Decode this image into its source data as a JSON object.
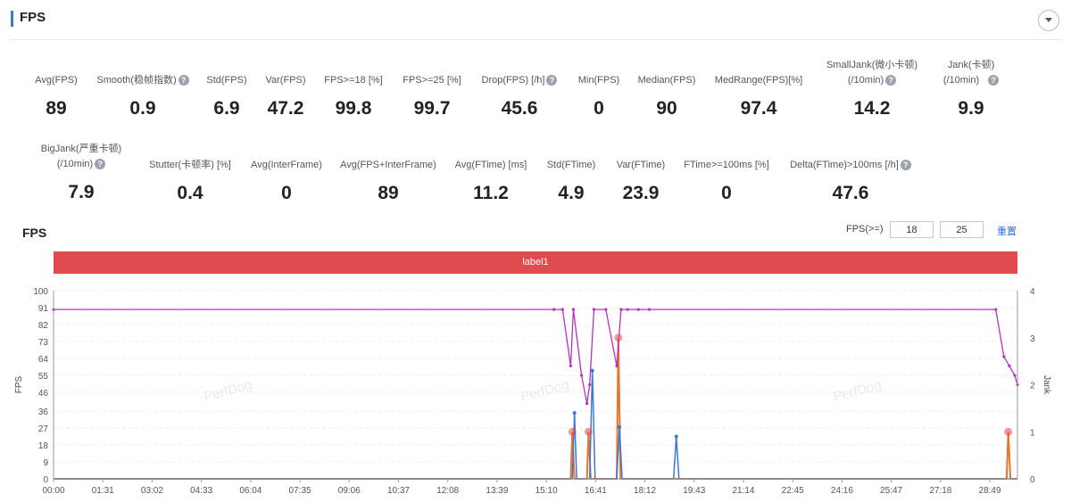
{
  "header": {
    "title": "FPS"
  },
  "metrics_row1": [
    {
      "label": "Avg(FPS)",
      "value": "89",
      "help": false
    },
    {
      "label": "Smooth(稳帧指数)",
      "value": "0.9",
      "help": true
    },
    {
      "label": "Std(FPS)",
      "value": "6.9",
      "help": false
    },
    {
      "label": "Var(FPS)",
      "value": "47.2",
      "help": false
    },
    {
      "label": "FPS>=18 [%]",
      "value": "99.8",
      "help": false
    },
    {
      "label": "FPS>=25 [%]",
      "value": "99.7",
      "help": false
    },
    {
      "label": "Drop(FPS) [/h]",
      "value": "45.6",
      "help": true
    },
    {
      "label": "Min(FPS)",
      "value": "0",
      "help": false
    },
    {
      "label": "Median(FPS)",
      "value": "90",
      "help": false
    },
    {
      "label": "MedRange(FPS)[%]",
      "value": "97.4",
      "help": false
    },
    {
      "label_line1": "SmallJank(微小卡顿)",
      "label_line2": "(/10min)",
      "value": "14.2",
      "help": true
    },
    {
      "label_line1": "Jank(卡顿)",
      "label_line2": "(/10min)",
      "value": "9.9",
      "help": true
    }
  ],
  "metrics_row2": [
    {
      "label_line1": "BigJank(严重卡顿)",
      "label_line2": "(/10min)",
      "value": "7.9",
      "help": true
    },
    {
      "label": "Stutter(卡顿率) [%]",
      "value": "0.4",
      "help": false
    },
    {
      "label": "Avg(InterFrame)",
      "value": "0",
      "help": false
    },
    {
      "label": "Avg(FPS+InterFrame)",
      "value": "89",
      "help": false
    },
    {
      "label": "Avg(FTime) [ms]",
      "value": "11.2",
      "help": false
    },
    {
      "label": "Std(FTime)",
      "value": "4.9",
      "help": false
    },
    {
      "label": "Var(FTime)",
      "value": "23.9",
      "help": false
    },
    {
      "label": "FTime>=100ms [%]",
      "value": "0",
      "help": false
    },
    {
      "label": "Delta(FTime)>100ms [/h]",
      "value": "47.6",
      "help": true
    }
  ],
  "chart_controls": {
    "title": "FPS",
    "threshold_label": "FPS(>=)",
    "threshold1": "18",
    "threshold2": "25",
    "reset_label": "重置",
    "band_label": "label1"
  },
  "watermark": "PerfDog",
  "colors": {
    "fps": "#b233c2",
    "jank": "#3a78d8",
    "bigjank": "#e8742a",
    "marker": "#e04848",
    "band": "#df4b4e",
    "accent": "#3a7bd5"
  },
  "chart_data": {
    "type": "line",
    "ylabel": "FPS",
    "y2label": "Jank",
    "ylim": [
      0,
      100
    ],
    "y2lim": [
      0,
      4
    ],
    "y_ticks": [
      0,
      9,
      18,
      27,
      36,
      46,
      55,
      64,
      73,
      82,
      91,
      100
    ],
    "y2_ticks": [
      0,
      1,
      2,
      3,
      4
    ],
    "x_ticks": [
      "00:00",
      "01:31",
      "03:02",
      "04:33",
      "06:04",
      "07:35",
      "09:06",
      "10:37",
      "12:08",
      "13:39",
      "15:10",
      "16:41",
      "18:12",
      "19:43",
      "21:14",
      "22:45",
      "24:16",
      "25:47",
      "27:18",
      "28:49"
    ],
    "x_range_seconds": [
      0,
      1780
    ],
    "series": [
      {
        "name": "FPS",
        "points": [
          [
            0,
            90
          ],
          [
            924,
            90
          ],
          [
            940,
            90
          ],
          [
            955,
            60
          ],
          [
            960,
            90
          ],
          [
            975,
            55
          ],
          [
            985,
            40
          ],
          [
            990,
            50
          ],
          [
            998,
            90
          ],
          [
            1020,
            90
          ],
          [
            1040,
            60
          ],
          [
            1048,
            90
          ],
          [
            1060,
            90
          ],
          [
            1080,
            90
          ],
          [
            1100,
            90
          ],
          [
            1740,
            90
          ],
          [
            1755,
            65
          ],
          [
            1765,
            60
          ],
          [
            1775,
            55
          ],
          [
            1780,
            50
          ]
        ]
      },
      {
        "name": "Jank",
        "points": [
          [
            0,
            0
          ],
          [
            958,
            0
          ],
          [
            962,
            1.4
          ],
          [
            966,
            0
          ],
          [
            990,
            0
          ],
          [
            995,
            2.3
          ],
          [
            1000,
            0
          ],
          [
            1040,
            0
          ],
          [
            1045,
            1.1
          ],
          [
            1050,
            0
          ],
          [
            1145,
            0
          ],
          [
            1150,
            0.9
          ],
          [
            1155,
            0
          ],
          [
            1780,
            0
          ]
        ]
      },
      {
        "name": "BigJank",
        "points": [
          [
            0,
            0
          ],
          [
            955,
            0
          ],
          [
            958,
            1.0
          ],
          [
            962,
            0
          ],
          [
            985,
            0
          ],
          [
            988,
            1.0
          ],
          [
            992,
            0
          ],
          [
            1040,
            0
          ],
          [
            1043,
            3.0
          ],
          [
            1047,
            0
          ],
          [
            1760,
            0
          ],
          [
            1763,
            1.0
          ],
          [
            1767,
            0
          ],
          [
            1780,
            0
          ]
        ]
      }
    ]
  }
}
